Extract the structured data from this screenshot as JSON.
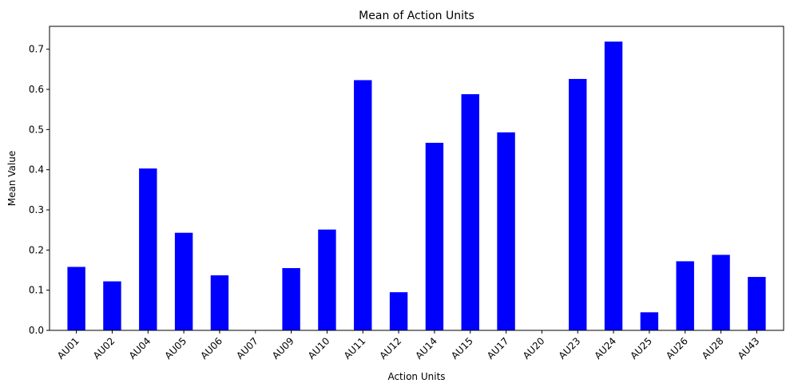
{
  "chart_data": {
    "type": "bar",
    "title": "Mean of Action Units",
    "xlabel": "Action Units",
    "ylabel": "Mean Value",
    "categories": [
      "AU01",
      "AU02",
      "AU04",
      "AU05",
      "AU06",
      "AU07",
      "AU09",
      "AU10",
      "AU11",
      "AU12",
      "AU14",
      "AU15",
      "AU17",
      "AU20",
      "AU23",
      "AU24",
      "AU25",
      "AU26",
      "AU28",
      "AU43"
    ],
    "values": [
      0.158,
      0.122,
      0.403,
      0.243,
      0.137,
      0.0,
      0.155,
      0.251,
      0.623,
      0.095,
      0.467,
      0.588,
      0.493,
      0.0,
      0.626,
      0.719,
      0.045,
      0.172,
      0.188,
      0.133
    ],
    "ylim": [
      0,
      0.757
    ],
    "yticks": [
      0.0,
      0.1,
      0.2,
      0.3,
      0.4,
      0.5,
      0.6,
      0.7
    ],
    "ytick_labels": [
      "0.0",
      "0.1",
      "0.2",
      "0.3",
      "0.4",
      "0.5",
      "0.6",
      "0.7"
    ],
    "bar_color": "#0000ff",
    "grid": false,
    "legend": "none"
  }
}
